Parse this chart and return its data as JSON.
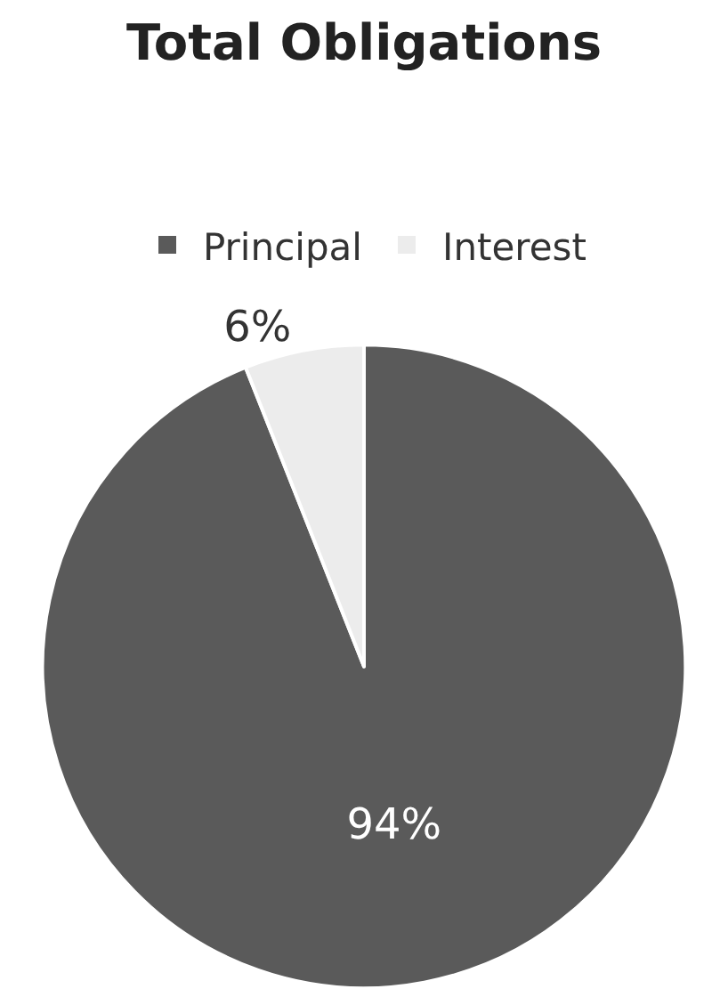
{
  "chart_data": {
    "type": "pie",
    "title": "Total Obligations",
    "categories": [
      "Principal",
      "Interest"
    ],
    "values": [
      94,
      6
    ],
    "colors": [
      "#5a5a5a",
      "#ececec"
    ],
    "value_labels": [
      "94%",
      "6%"
    ],
    "legend": "top"
  }
}
